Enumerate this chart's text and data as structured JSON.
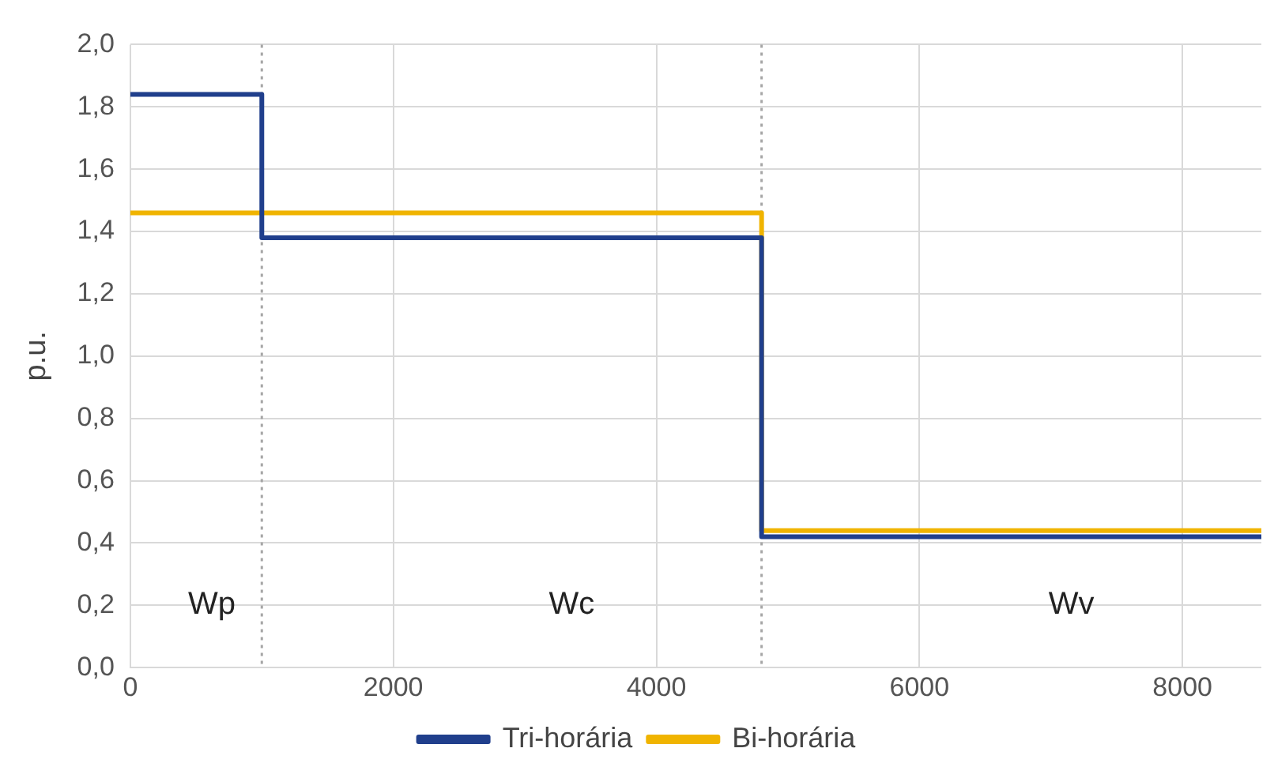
{
  "chart_data": {
    "type": "step",
    "ylabel": "p.u.",
    "x": [
      0,
      1000,
      4800,
      8600
    ],
    "series": [
      {
        "name": "Tri-horária",
        "color": "#203f8c",
        "values": [
          1.84,
          1.38,
          0.42,
          0.42
        ]
      },
      {
        "name": "Bi-horária",
        "color": "#f0b400",
        "values": [
          1.46,
          1.46,
          0.44,
          0.44
        ]
      }
    ],
    "xlim": [
      0,
      8600
    ],
    "xticks": [
      0,
      2000,
      4000,
      6000,
      8000
    ],
    "ylim": [
      0,
      2
    ],
    "yticks": [
      {
        "value": 0,
        "label": "0,0"
      },
      {
        "value": 0.2,
        "label": "0,2"
      },
      {
        "value": 0.4,
        "label": "0,4"
      },
      {
        "value": 0.6,
        "label": "0,6"
      },
      {
        "value": 0.8,
        "label": "0,8"
      },
      {
        "value": 1,
        "label": "1,0"
      },
      {
        "value": 1.2,
        "label": "1,2"
      },
      {
        "value": 1.4,
        "label": "1,4"
      },
      {
        "value": 1.6,
        "label": "1,6"
      },
      {
        "value": 1.8,
        "label": "1,8"
      },
      {
        "value": 2,
        "label": "2,0"
      }
    ],
    "ref_lines": [
      {
        "axis": "x",
        "value": 1000,
        "color": "#a6a6a6",
        "line_style": "dotted"
      },
      {
        "axis": "x",
        "value": 4800,
        "color": "#a6a6a6",
        "line_style": "dotted"
      }
    ],
    "annotations": [
      "Wp",
      "Wc",
      "Wv"
    ],
    "grid": true,
    "legend": "bottom",
    "marker": "none",
    "line_style": "solid"
  }
}
